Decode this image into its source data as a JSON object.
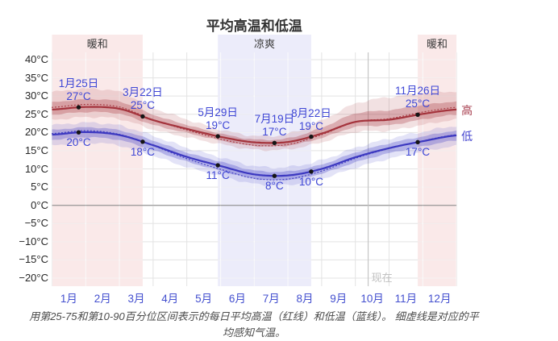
{
  "title": "平均高温和低温",
  "caption": "用第25-75和第10-90百分位区间表示的每日平均高温（红线）和低温（蓝线）。 细虚线是对应的平均感知气温。",
  "chart_data": {
    "type": "line",
    "title": "平均高温和低温",
    "x_axis": {
      "unit": "month",
      "range_months": [
        0,
        12
      ],
      "tick_labels": [
        "1月",
        "2月",
        "3月",
        "4月",
        "5月",
        "6月",
        "7月",
        "8月",
        "9月",
        "10月",
        "11月",
        "12月"
      ]
    },
    "y_axis": {
      "unit": "°C",
      "tick_values": [
        40,
        35,
        30,
        25,
        20,
        15,
        10,
        5,
        0,
        -5,
        -10,
        -15,
        -20
      ],
      "tick_labels": [
        "40°C",
        "35°C",
        "30°C",
        "25°C",
        "20°C",
        "15°C",
        "10°C",
        "5°C",
        "0°C",
        "−5°C",
        "−10°C",
        "−15°C",
        "−20°C"
      ]
    },
    "season_bands": [
      {
        "label": "暖和",
        "type": "warm",
        "start_month": 0,
        "end_month": 2.69
      },
      {
        "label": "凉爽",
        "type": "cool",
        "start_month": 4.92,
        "end_month": 7.69
      },
      {
        "label": "暖和",
        "type": "warm",
        "start_month": 10.85,
        "end_month": 12
      }
    ],
    "series": [
      {
        "id": "high",
        "label": "高",
        "color": "#a4333c",
        "monthly_mean": [
          26.3,
          27.0,
          26.5,
          23.4,
          21.0,
          18.8,
          17.3,
          17.4,
          19.7,
          22.9,
          23.5,
          25.1,
          26.3
        ],
        "p75_offset": [
          2.0,
          2.1,
          2.0,
          1.5,
          1.1,
          0.9,
          0.8,
          1.0,
          1.6,
          2.3,
          2.6,
          2.4,
          2.2
        ],
        "p90_offset": [
          4.8,
          5.0,
          4.6,
          3.4,
          2.6,
          2.0,
          1.8,
          2.2,
          3.6,
          5.0,
          6.2,
          5.6,
          5.0
        ],
        "p25_offset": [
          1.4,
          1.4,
          1.4,
          1.3,
          1.1,
          1.0,
          1.0,
          1.0,
          1.2,
          1.4,
          1.5,
          1.5,
          1.4
        ],
        "p10_offset": [
          2.8,
          2.8,
          2.8,
          2.6,
          2.3,
          2.0,
          2.0,
          2.0,
          2.4,
          2.8,
          3.0,
          3.0,
          2.8
        ],
        "feels_like_delta": [
          0.6,
          0.7,
          0.5,
          0.1,
          -0.3,
          -0.6,
          -0.8,
          -0.7,
          -0.3,
          0.0,
          0.3,
          0.5,
          0.6
        ],
        "callouts": [
          {
            "date": "1月25日",
            "value_label": "27°C",
            "month_x": 0.79
          },
          {
            "date": "3月22日",
            "value_label": "25°C",
            "month_x": 2.69
          },
          {
            "date": "5月29日",
            "value_label": "19°C",
            "month_x": 4.92
          },
          {
            "date": "7月19日",
            "value_label": "17°C",
            "month_x": 6.6
          },
          {
            "date": "8月22日",
            "value_label": "19°C",
            "month_x": 7.69
          },
          {
            "date": "11月26日",
            "value_label": "25°C",
            "month_x": 10.85
          }
        ]
      },
      {
        "id": "low",
        "label": "低",
        "color": "#3c38c0",
        "monthly_mean": [
          19.4,
          20.1,
          19.3,
          16.5,
          13.3,
          10.8,
          8.5,
          8.2,
          10.0,
          13.2,
          15.7,
          17.6,
          19.2
        ],
        "p75_offset": [
          1.3,
          1.3,
          1.3,
          1.3,
          1.2,
          1.2,
          1.1,
          1.1,
          1.2,
          1.3,
          1.3,
          1.3,
          1.3
        ],
        "p90_offset": [
          2.6,
          2.6,
          2.6,
          2.6,
          2.5,
          2.4,
          2.3,
          2.3,
          2.4,
          2.6,
          2.6,
          2.6,
          2.6
        ],
        "p25_offset": [
          1.4,
          1.4,
          1.4,
          1.4,
          1.3,
          1.3,
          1.2,
          1.2,
          1.3,
          1.4,
          1.4,
          1.4,
          1.4
        ],
        "p10_offset": [
          2.9,
          2.9,
          2.9,
          2.9,
          2.8,
          2.7,
          2.6,
          2.6,
          2.7,
          2.9,
          2.9,
          2.9,
          2.9
        ],
        "feels_like_delta": [
          0.3,
          0.4,
          0.2,
          -0.1,
          -0.5,
          -0.9,
          -1.1,
          -1.0,
          -0.6,
          -0.3,
          -0.1,
          0.1,
          0.2
        ],
        "callouts": [
          {
            "value_label": "20°C",
            "month_x": 0.79
          },
          {
            "value_label": "18°C",
            "month_x": 2.69
          },
          {
            "value_label": "11°C",
            "month_x": 4.92
          },
          {
            "value_label": "8°C",
            "month_x": 6.6
          },
          {
            "value_label": "10°C",
            "month_x": 7.69
          },
          {
            "value_label": "17°C",
            "month_x": 10.85
          }
        ]
      }
    ],
    "now_marker": {
      "label": "现在",
      "month_x": 9.38
    },
    "colors": {
      "warm_band": "rgba(214,86,86,0.13)",
      "cool_band": "rgba(108,108,216,0.13)",
      "grid": "#e3e3e3",
      "zero_line": "#9c9c9c",
      "now_line": "#c2c2c2",
      "dot": "#151515"
    }
  }
}
